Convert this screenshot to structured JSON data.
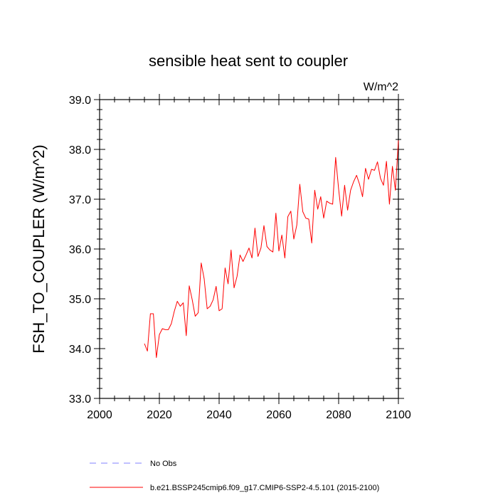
{
  "chart_data": {
    "type": "line",
    "title": "sensible heat sent to coupler",
    "units_label": "W/m^2",
    "ylabel": "FSH_TO_COUPLER  (W/m^2)",
    "xlabel": "",
    "xlim": [
      2000,
      2100
    ],
    "ylim": [
      33.0,
      39.0
    ],
    "x_ticks": [
      2000,
      2020,
      2040,
      2060,
      2080,
      2100
    ],
    "x_tick_labels": [
      "2000",
      "2020",
      "2040",
      "2060",
      "2080",
      "2100"
    ],
    "y_ticks": [
      33.0,
      34.0,
      35.0,
      36.0,
      37.0,
      38.0,
      39.0
    ],
    "y_tick_labels": [
      "33.0",
      "34.0",
      "35.0",
      "36.0",
      "37.0",
      "38.0",
      "39.0"
    ],
    "grid": false,
    "legend_position": "bottom",
    "legend": [
      {
        "name": "No Obs",
        "color": "#8080ff",
        "style": "dashed"
      },
      {
        "name": "b.e21.BSSP245cmip6.f09_g17.CMIP6-SSP2-4.5.101 (2015-2100)",
        "color": "#ff0000",
        "style": "solid"
      }
    ],
    "series": [
      {
        "name": "b.e21.BSSP245cmip6.f09_g17.CMIP6-SSP2-4.5.101 (2015-2100)",
        "color": "#ff0000",
        "x": [
          2015,
          2016,
          2017,
          2018,
          2019,
          2020,
          2021,
          2022,
          2023,
          2024,
          2025,
          2026,
          2027,
          2028,
          2029,
          2030,
          2031,
          2032,
          2033,
          2034,
          2035,
          2036,
          2037,
          2038,
          2039,
          2040,
          2041,
          2042,
          2043,
          2044,
          2045,
          2046,
          2047,
          2048,
          2049,
          2050,
          2051,
          2052,
          2053,
          2054,
          2055,
          2056,
          2057,
          2058,
          2059,
          2060,
          2061,
          2062,
          2063,
          2064,
          2065,
          2066,
          2067,
          2068,
          2069,
          2070,
          2071,
          2072,
          2073,
          2074,
          2075,
          2076,
          2077,
          2078,
          2079,
          2080,
          2081,
          2082,
          2083,
          2084,
          2085,
          2086,
          2087,
          2088,
          2089,
          2090,
          2091,
          2092,
          2093,
          2094,
          2095,
          2096,
          2097,
          2098,
          2099,
          2100
        ],
        "y": [
          34.1,
          33.95,
          34.7,
          34.7,
          33.82,
          34.28,
          34.4,
          34.38,
          34.38,
          34.5,
          34.75,
          34.95,
          34.85,
          34.92,
          34.26,
          35.26,
          34.98,
          34.65,
          34.72,
          35.72,
          35.4,
          34.8,
          34.85,
          34.98,
          35.25,
          34.76,
          34.8,
          35.62,
          35.3,
          35.98,
          35.22,
          35.45,
          35.88,
          35.75,
          35.88,
          36.02,
          35.82,
          36.42,
          35.85,
          36.02,
          36.47,
          36.05,
          35.98,
          35.94,
          36.72,
          35.96,
          36.28,
          35.82,
          36.65,
          36.76,
          36.2,
          36.48,
          37.3,
          36.75,
          36.62,
          36.6,
          36.12,
          37.18,
          36.8,
          37.05,
          36.62,
          36.96,
          36.92,
          36.9,
          37.84,
          37.2,
          36.66,
          37.28,
          36.78,
          37.18,
          37.35,
          37.48,
          37.3,
          37.05,
          37.62,
          37.4,
          37.6,
          37.58,
          37.75,
          37.42,
          37.28,
          37.76,
          36.9,
          37.66,
          37.18,
          38.18
        ]
      }
    ]
  }
}
